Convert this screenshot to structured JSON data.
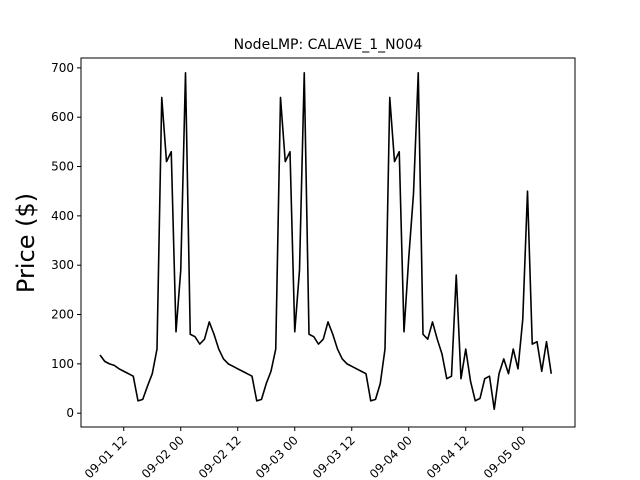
{
  "chart_data": {
    "type": "line",
    "title": "NodeLMP: CALAVE_1_N004",
    "y_label": "Price ($)",
    "x": [
      "09-01 07",
      "09-01 08",
      "09-01 09",
      "09-01 10",
      "09-01 11",
      "09-01 12",
      "09-01 13",
      "09-01 14",
      "09-01 15",
      "09-01 16",
      "09-01 17",
      "09-01 18",
      "09-01 19",
      "09-01 20",
      "09-01 21",
      "09-01 22",
      "09-01 23",
      "09-02 00",
      "09-02 01",
      "09-02 02",
      "09-02 03",
      "09-02 04",
      "09-02 05",
      "09-02 06",
      "09-02 07",
      "09-02 08",
      "09-02 09",
      "09-02 10",
      "09-02 11",
      "09-02 12",
      "09-02 13",
      "09-02 14",
      "09-02 15",
      "09-02 16",
      "09-02 17",
      "09-02 18",
      "09-02 19",
      "09-02 20",
      "09-02 21",
      "09-02 22",
      "09-02 23",
      "09-03 00",
      "09-03 01",
      "09-03 02",
      "09-03 03",
      "09-03 04",
      "09-03 05",
      "09-03 06",
      "09-03 07",
      "09-03 08",
      "09-03 09",
      "09-03 10",
      "09-03 11",
      "09-03 12",
      "09-03 13",
      "09-03 14",
      "09-03 15",
      "09-03 16",
      "09-03 17",
      "09-03 18",
      "09-03 19",
      "09-03 20",
      "09-03 21",
      "09-03 22",
      "09-03 23",
      "09-04 00",
      "09-04 01",
      "09-04 02",
      "09-04 03",
      "09-04 04",
      "09-04 05",
      "09-04 06",
      "09-04 07",
      "09-04 08",
      "09-04 09",
      "09-04 10",
      "09-04 11",
      "09-04 12",
      "09-04 13",
      "09-04 14",
      "09-04 15",
      "09-04 16",
      "09-04 17",
      "09-04 18",
      "09-04 19",
      "09-04 20",
      "09-04 21",
      "09-04 22",
      "09-04 23",
      "09-05 00",
      "09-05 01",
      "09-05 02",
      "09-05 03",
      "09-05 04",
      "09-05 05",
      "09-05 06"
    ],
    "series": [
      {
        "color": "#000000",
        "values": [
          118,
          105,
          100,
          97,
          90,
          85,
          80,
          75,
          25,
          28,
          55,
          80,
          130,
          640,
          510,
          530,
          165,
          290,
          690,
          160,
          155,
          140,
          150,
          185,
          160,
          130,
          110,
          100,
          95,
          90,
          85,
          80,
          75,
          25,
          28,
          60,
          85,
          130,
          640,
          510,
          530,
          165,
          290,
          690,
          160,
          155,
          140,
          150,
          185,
          160,
          130,
          110,
          100,
          95,
          90,
          85,
          80,
          25,
          28,
          60,
          130,
          640,
          510,
          530,
          165,
          315,
          445,
          690,
          160,
          150,
          185,
          150,
          120,
          70,
          75,
          280,
          70,
          130,
          65,
          25,
          30,
          70,
          75,
          8,
          80,
          110,
          80,
          130,
          90,
          190,
          450,
          140,
          145,
          85,
          145,
          80
        ]
      }
    ],
    "xlim": [
      "09-01 03",
      "09-05 11"
    ],
    "xticks": [
      "09-01 12",
      "09-02 00",
      "09-02 12",
      "09-03 00",
      "09-03 12",
      "09-04 00",
      "09-04 12",
      "09-05 00"
    ],
    "ylim": [
      -28,
      720
    ],
    "yticks": [
      0,
      100,
      200,
      300,
      400,
      500,
      600,
      700
    ]
  }
}
